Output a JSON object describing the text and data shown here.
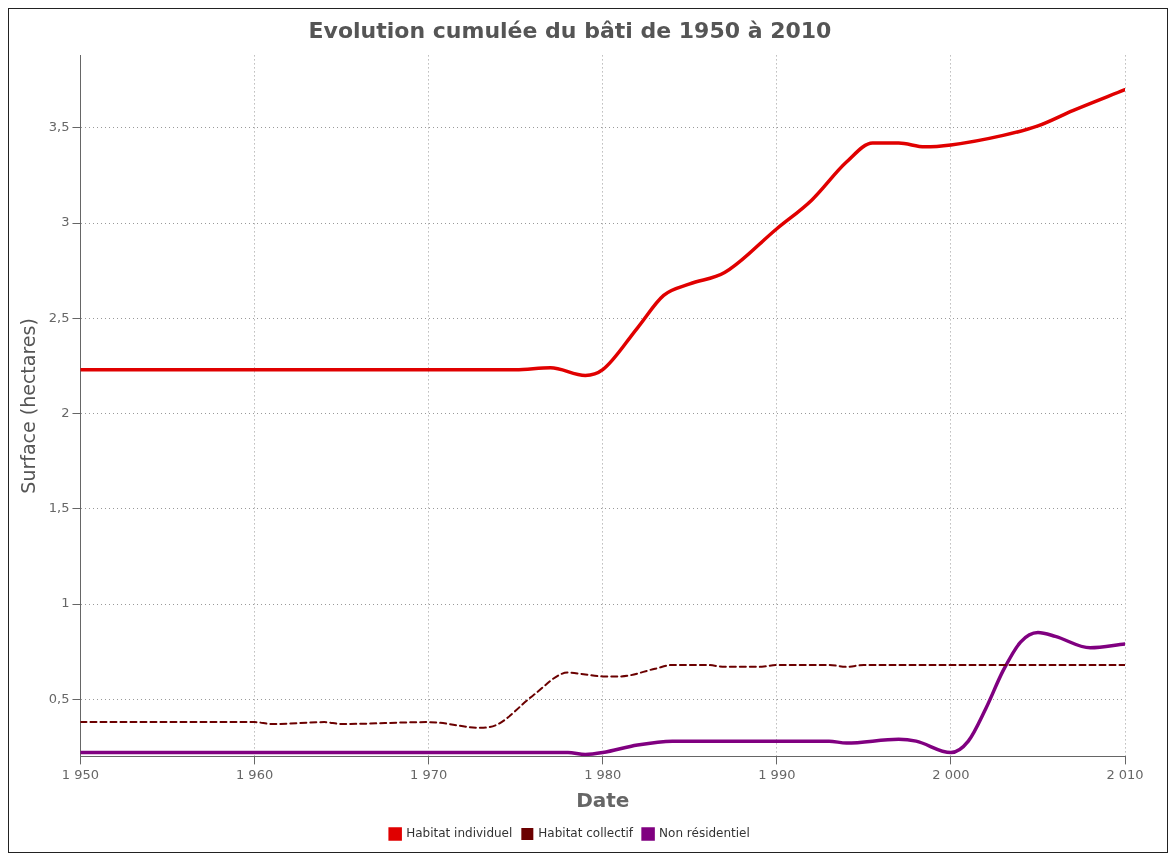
{
  "chart_data": {
    "type": "line",
    "title": "Evolution cumulée du bâti de 1950 à 2010",
    "xlabel": "Date",
    "ylabel": "Surface (hectares)",
    "xlim": [
      1950,
      2010
    ],
    "xticks": [
      {
        "value": 1950,
        "label": "1 950"
      },
      {
        "value": 1960,
        "label": "1 960"
      },
      {
        "value": 1970,
        "label": "1 970"
      },
      {
        "value": 1980,
        "label": "1 980"
      },
      {
        "value": 1990,
        "label": "1 990"
      },
      {
        "value": 2000,
        "label": "2 000"
      },
      {
        "value": 2010,
        "label": "2 010"
      }
    ],
    "ylim": [
      0.2,
      3.88
    ],
    "yticks": [
      {
        "value": 0.5,
        "label": "0,5"
      },
      1,
      {
        "value": 1.5,
        "label": "1,5"
      },
      2,
      {
        "value": 2.5,
        "label": "2,5"
      },
      3,
      {
        "value": 3.5,
        "label": "3,5"
      }
    ],
    "grid": true,
    "legend": "bottom",
    "marker": "none",
    "series": [
      {
        "name": "Habitat individuel",
        "color": "#e00000",
        "line_style": "solid",
        "x": [
          1950,
          1975,
          1977,
          1979,
          1980,
          1982,
          1983.5,
          1985,
          1987,
          1990,
          1992,
          1994,
          1995.5,
          1997,
          1998.5,
          2000,
          2003,
          2005,
          2007,
          2010
        ],
        "values": [
          2.23,
          2.23,
          2.24,
          2.2,
          2.23,
          2.45,
          2.62,
          2.68,
          2.74,
          2.97,
          3.12,
          3.32,
          3.42,
          3.42,
          3.4,
          3.41,
          3.46,
          3.51,
          3.59,
          3.7
        ]
      },
      {
        "name": "Habitat collectif",
        "color": "#6b0000",
        "line_style": "dashed",
        "x": [
          1950,
          1960,
          1961,
          1964,
          1965,
          1970,
          1973,
          1974,
          1976,
          1978,
          1979,
          1980,
          1981,
          1983,
          1984,
          1986,
          1987,
          1989,
          1990,
          1993,
          1994,
          1995,
          2010
        ],
        "values": [
          0.38,
          0.38,
          0.37,
          0.38,
          0.37,
          0.38,
          0.35,
          0.37,
          0.52,
          0.64,
          0.63,
          0.62,
          0.62,
          0.66,
          0.68,
          0.68,
          0.67,
          0.67,
          0.68,
          0.68,
          0.67,
          0.68,
          0.68
        ]
      },
      {
        "name": "Non résidentiel",
        "color": "#800080",
        "line_style": "solid",
        "x": [
          1950,
          1978,
          1979,
          1980,
          1982,
          1984,
          1990,
          1993,
          1994,
          1997,
          1998,
          2000,
          2001,
          2002,
          2003,
          2004,
          2005,
          2006,
          2008,
          2010
        ],
        "values": [
          0.22,
          0.22,
          0.21,
          0.22,
          0.26,
          0.28,
          0.28,
          0.28,
          0.27,
          0.29,
          0.28,
          0.22,
          0.28,
          0.45,
          0.65,
          0.8,
          0.85,
          0.83,
          0.77,
          0.79
        ]
      }
    ]
  }
}
